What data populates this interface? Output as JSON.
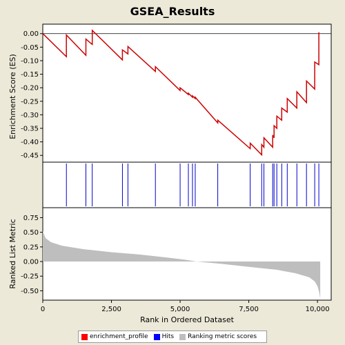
{
  "chart_data": {
    "type": "line",
    "title": "GSEA_Results",
    "xlabel": "Rank in Ordered Dataset",
    "x_ticks": [
      0,
      2500,
      5000,
      7500,
      10000
    ],
    "x_tick_labels": [
      "0",
      "2,500",
      "5,000",
      "7,500",
      "10,000"
    ],
    "xlim": [
      0,
      10500
    ],
    "panels": {
      "enrichment": {
        "ylabel": "Enrichment Score (ES)",
        "ylim": [
          -0.475,
          0.035
        ],
        "y_ticks": [
          0.0,
          -0.05,
          -0.1,
          -0.15,
          -0.2,
          -0.25,
          -0.3,
          -0.35,
          -0.4,
          -0.45
        ],
        "y_tick_labels": [
          "0.00",
          "-0.05",
          "-0.10",
          "-0.15",
          "-0.20",
          "-0.25",
          "-0.30",
          "-0.35",
          "-0.40",
          "-0.45"
        ],
        "color": "#cc0000",
        "points": [
          [
            0,
            0.0
          ],
          [
            860,
            -0.085
          ],
          [
            860,
            -0.005
          ],
          [
            1570,
            -0.08
          ],
          [
            1570,
            -0.02
          ],
          [
            1800,
            -0.04
          ],
          [
            1800,
            0.012
          ],
          [
            2900,
            -0.097
          ],
          [
            2900,
            -0.06
          ],
          [
            3100,
            -0.075
          ],
          [
            3100,
            -0.048
          ],
          [
            4100,
            -0.14
          ],
          [
            4100,
            -0.122
          ],
          [
            5000,
            -0.21
          ],
          [
            5000,
            -0.2
          ],
          [
            5300,
            -0.225
          ],
          [
            5300,
            -0.22
          ],
          [
            5450,
            -0.235
          ],
          [
            5450,
            -0.23
          ],
          [
            5550,
            -0.24
          ],
          [
            5550,
            -0.235
          ],
          [
            6370,
            -0.33
          ],
          [
            6370,
            -0.32
          ],
          [
            7550,
            -0.425
          ],
          [
            7550,
            -0.405
          ],
          [
            7970,
            -0.448
          ],
          [
            7970,
            -0.41
          ],
          [
            8050,
            -0.42
          ],
          [
            8050,
            -0.385
          ],
          [
            8370,
            -0.42
          ],
          [
            8370,
            -0.375
          ],
          [
            8420,
            -0.385
          ],
          [
            8420,
            -0.34
          ],
          [
            8520,
            -0.35
          ],
          [
            8520,
            -0.305
          ],
          [
            8700,
            -0.32
          ],
          [
            8700,
            -0.275
          ],
          [
            8900,
            -0.29
          ],
          [
            8900,
            -0.24
          ],
          [
            9250,
            -0.275
          ],
          [
            9250,
            -0.215
          ],
          [
            9600,
            -0.255
          ],
          [
            9600,
            -0.175
          ],
          [
            9900,
            -0.205
          ],
          [
            9900,
            -0.105
          ],
          [
            10050,
            -0.115
          ],
          [
            10050,
            0.005
          ]
        ]
      },
      "hits": {
        "color": "#0000cc",
        "positions": [
          860,
          1570,
          1800,
          2900,
          3100,
          4100,
          5000,
          5300,
          5450,
          5550,
          6370,
          7550,
          7970,
          8050,
          8370,
          8420,
          8520,
          8700,
          8900,
          9250,
          9600,
          9900,
          10050
        ]
      },
      "ranking": {
        "ylabel": "Ranked List Metric",
        "ylim": [
          -0.66,
          0.92
        ],
        "y_ticks": [
          0.75,
          0.5,
          0.25,
          0.0,
          -0.25,
          -0.5
        ],
        "y_tick_labels": [
          "0.75",
          "0.50",
          "0.25",
          "0.00",
          "-0.25",
          "-0.50"
        ],
        "color": "#bebebe",
        "n_genes": 10100,
        "profile": [
          [
            0,
            0.52
          ],
          [
            100,
            0.4
          ],
          [
            300,
            0.33
          ],
          [
            700,
            0.27
          ],
          [
            1500,
            0.21
          ],
          [
            2500,
            0.16
          ],
          [
            3500,
            0.12
          ],
          [
            4500,
            0.07
          ],
          [
            5200,
            0.03
          ],
          [
            5600,
            0.0
          ],
          [
            6500,
            -0.04
          ],
          [
            7500,
            -0.09
          ],
          [
            8500,
            -0.14
          ],
          [
            9200,
            -0.2
          ],
          [
            9700,
            -0.27
          ],
          [
            9900,
            -0.34
          ],
          [
            10000,
            -0.42
          ],
          [
            10060,
            -0.52
          ],
          [
            10100,
            -0.63
          ]
        ]
      }
    },
    "legend": {
      "placement": "bottom",
      "entries": [
        {
          "label": "enrichment_profile",
          "color": "#ff0000"
        },
        {
          "label": "Hits",
          "color": "#0000ff"
        },
        {
          "label": "Ranking metric scores",
          "color": "#bebebe"
        }
      ]
    }
  }
}
